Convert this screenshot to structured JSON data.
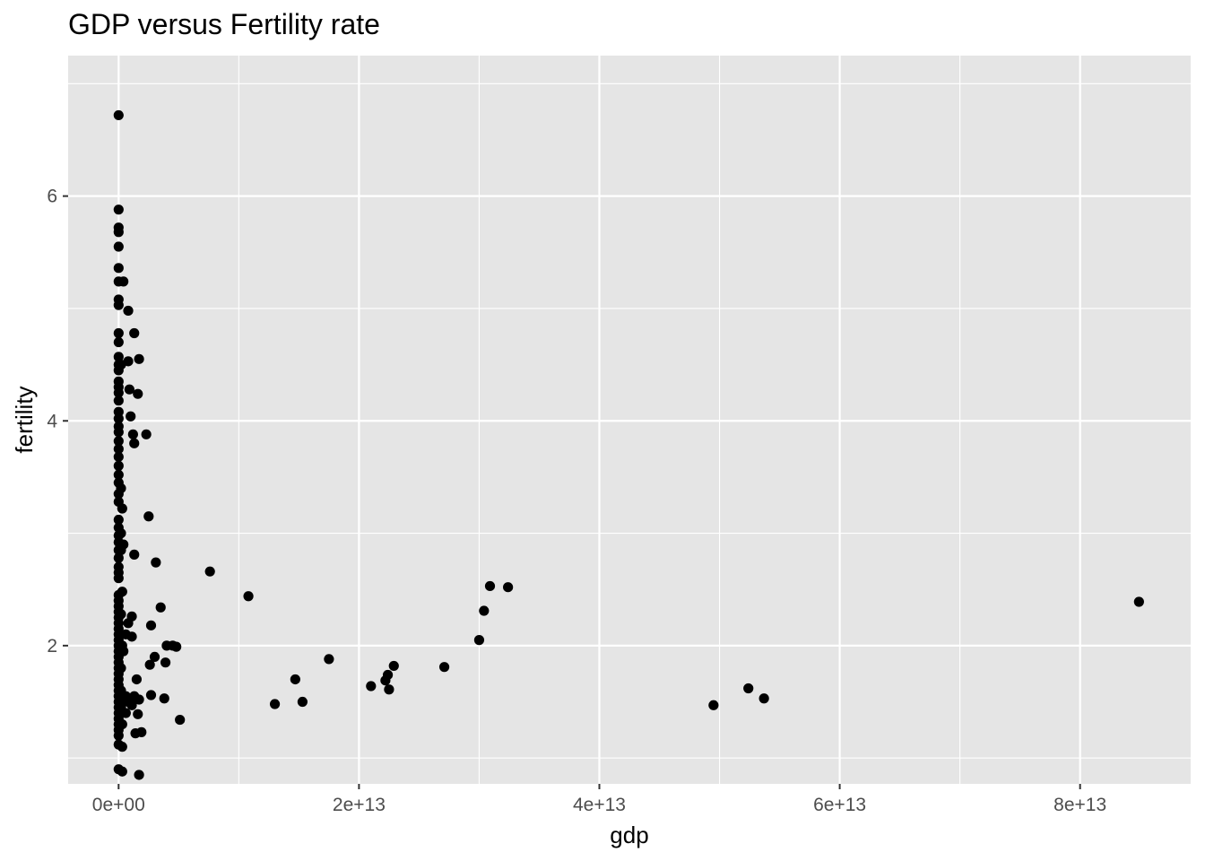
{
  "chart_data": {
    "type": "scatter",
    "title": "GDP versus Fertility rate",
    "xlabel": "gdp",
    "ylabel": "fertility",
    "xlim": [
      -4200000000000.0,
      89200000000000.0
    ],
    "ylim": [
      0.77,
      7.25
    ],
    "x_ticks": [
      {
        "value": 0,
        "label": "0e+00"
      },
      {
        "value": 20000000000000.0,
        "label": "2e+13"
      },
      {
        "value": 40000000000000.0,
        "label": "4e+13"
      },
      {
        "value": 60000000000000.0,
        "label": "6e+13"
      },
      {
        "value": 80000000000000.0,
        "label": "8e+13"
      }
    ],
    "x_minor": [
      10000000000000.0,
      30000000000000.0,
      50000000000000.0,
      70000000000000.0
    ],
    "y_ticks": [
      {
        "value": 2,
        "label": "2"
      },
      {
        "value": 4,
        "label": "4"
      },
      {
        "value": 6,
        "label": "6"
      }
    ],
    "y_minor": [
      1,
      3,
      5,
      7
    ],
    "grid": true,
    "panel_background": "#E5E5E5",
    "grid_color": "#FFFFFF",
    "point_color": "#000000",
    "points": [
      {
        "x": 0,
        "y": 6.72
      },
      {
        "x": 0,
        "y": 5.88
      },
      {
        "x": 0,
        "y": 5.72
      },
      {
        "x": 0,
        "y": 5.68
      },
      {
        "x": 0,
        "y": 5.55
      },
      {
        "x": 0,
        "y": 5.36
      },
      {
        "x": 0,
        "y": 5.24
      },
      {
        "x": 0,
        "y": 5.08
      },
      {
        "x": 0,
        "y": 5.03
      },
      {
        "x": 0,
        "y": 4.78
      },
      {
        "x": 0,
        "y": 4.7
      },
      {
        "x": 0,
        "y": 4.57
      },
      {
        "x": 0,
        "y": 4.5
      },
      {
        "x": 0,
        "y": 4.45
      },
      {
        "x": 0,
        "y": 4.35
      },
      {
        "x": 0,
        "y": 4.3
      },
      {
        "x": 0,
        "y": 4.25
      },
      {
        "x": 0,
        "y": 4.18
      },
      {
        "x": 0,
        "y": 4.08
      },
      {
        "x": 0,
        "y": 4.02
      },
      {
        "x": 0,
        "y": 3.95
      },
      {
        "x": 0,
        "y": 3.9
      },
      {
        "x": 0,
        "y": 3.82
      },
      {
        "x": 0,
        "y": 3.75
      },
      {
        "x": 0,
        "y": 3.68
      },
      {
        "x": 0,
        "y": 3.6
      },
      {
        "x": 0,
        "y": 3.52
      },
      {
        "x": 0,
        "y": 3.45
      },
      {
        "x": 0,
        "y": 3.35
      },
      {
        "x": 0,
        "y": 3.28
      },
      {
        "x": 0,
        "y": 3.12
      },
      {
        "x": 0,
        "y": 3.05
      },
      {
        "x": 0,
        "y": 2.98
      },
      {
        "x": 0,
        "y": 2.92
      },
      {
        "x": 0,
        "y": 2.85
      },
      {
        "x": 0,
        "y": 2.78
      },
      {
        "x": 0,
        "y": 2.7
      },
      {
        "x": 0,
        "y": 2.65
      },
      {
        "x": 0,
        "y": 2.6
      },
      {
        "x": 0,
        "y": 2.45
      },
      {
        "x": 0,
        "y": 2.4
      },
      {
        "x": 0,
        "y": 2.35
      },
      {
        "x": 0,
        "y": 2.3
      },
      {
        "x": 0,
        "y": 2.25
      },
      {
        "x": 0,
        "y": 2.2
      },
      {
        "x": 0,
        "y": 2.15
      },
      {
        "x": 0,
        "y": 2.1
      },
      {
        "x": 0,
        "y": 2.05
      },
      {
        "x": 0,
        "y": 2.0
      },
      {
        "x": 0,
        "y": 1.95
      },
      {
        "x": 0,
        "y": 1.9
      },
      {
        "x": 0,
        "y": 1.85
      },
      {
        "x": 0,
        "y": 1.8
      },
      {
        "x": 0,
        "y": 1.75
      },
      {
        "x": 0,
        "y": 1.7
      },
      {
        "x": 0,
        "y": 1.65
      },
      {
        "x": 0,
        "y": 1.6
      },
      {
        "x": 0,
        "y": 1.55
      },
      {
        "x": 0,
        "y": 1.5
      },
      {
        "x": 0,
        "y": 1.45
      },
      {
        "x": 0,
        "y": 1.4
      },
      {
        "x": 0,
        "y": 1.35
      },
      {
        "x": 0,
        "y": 1.3
      },
      {
        "x": 0,
        "y": 1.25
      },
      {
        "x": 0,
        "y": 1.2
      },
      {
        "x": 0,
        "y": 1.12
      },
      {
        "x": 0,
        "y": 0.9
      },
      {
        "x": 200000000000.0,
        "y": 4.5
      },
      {
        "x": 200000000000.0,
        "y": 3.4
      },
      {
        "x": 200000000000.0,
        "y": 3.0
      },
      {
        "x": 200000000000.0,
        "y": 2.85
      },
      {
        "x": 200000000000.0,
        "y": 2.28
      },
      {
        "x": 200000000000.0,
        "y": 1.8
      },
      {
        "x": 200000000000.0,
        "y": 1.6
      },
      {
        "x": 200000000000.0,
        "y": 1.45
      },
      {
        "x": 300000000000.0,
        "y": 3.22
      },
      {
        "x": 300000000000.0,
        "y": 2.48
      },
      {
        "x": 300000000000.0,
        "y": 2.0
      },
      {
        "x": 300000000000.0,
        "y": 1.3
      },
      {
        "x": 300000000000.0,
        "y": 1.1
      },
      {
        "x": 300000000000.0,
        "y": 0.88
      },
      {
        "x": 400000000000.0,
        "y": 5.24
      },
      {
        "x": 400000000000.0,
        "y": 2.9
      },
      {
        "x": 400000000000.0,
        "y": 1.95
      },
      {
        "x": 400000000000.0,
        "y": 1.5
      },
      {
        "x": 600000000000.0,
        "y": 2.1
      },
      {
        "x": 600000000000.0,
        "y": 1.55
      },
      {
        "x": 600000000000.0,
        "y": 1.4
      },
      {
        "x": 800000000000.0,
        "y": 4.98
      },
      {
        "x": 800000000000.0,
        "y": 4.53
      },
      {
        "x": 800000000000.0,
        "y": 2.2
      },
      {
        "x": 800000000000.0,
        "y": 1.5
      },
      {
        "x": 900000000000.0,
        "y": 4.28
      },
      {
        "x": 1000000000000.0,
        "y": 4.04
      },
      {
        "x": 1100000000000.0,
        "y": 2.26
      },
      {
        "x": 1100000000000.0,
        "y": 2.08
      },
      {
        "x": 1100000000000.0,
        "y": 1.47
      },
      {
        "x": 1200000000000.0,
        "y": 3.88
      },
      {
        "x": 1300000000000.0,
        "y": 4.78
      },
      {
        "x": 1300000000000.0,
        "y": 3.8
      },
      {
        "x": 1300000000000.0,
        "y": 2.81
      },
      {
        "x": 1300000000000.0,
        "y": 1.55
      },
      {
        "x": 1400000000000.0,
        "y": 1.22
      },
      {
        "x": 1500000000000.0,
        "y": 1.7
      },
      {
        "x": 1600000000000.0,
        "y": 4.24
      },
      {
        "x": 1600000000000.0,
        "y": 1.39
      },
      {
        "x": 1700000000000.0,
        "y": 4.55
      },
      {
        "x": 1700000000000.0,
        "y": 0.85
      },
      {
        "x": 1700000000000.0,
        "y": 1.52
      },
      {
        "x": 1900000000000.0,
        "y": 1.23
      },
      {
        "x": 2300000000000.0,
        "y": 3.88
      },
      {
        "x": 2500000000000.0,
        "y": 3.15
      },
      {
        "x": 2600000000000.0,
        "y": 1.83
      },
      {
        "x": 2700000000000.0,
        "y": 2.18
      },
      {
        "x": 2700000000000.0,
        "y": 1.56
      },
      {
        "x": 3000000000000.0,
        "y": 1.9
      },
      {
        "x": 3100000000000.0,
        "y": 2.74
      },
      {
        "x": 3500000000000.0,
        "y": 2.34
      },
      {
        "x": 3800000000000.0,
        "y": 1.53
      },
      {
        "x": 3900000000000.0,
        "y": 1.85
      },
      {
        "x": 4000000000000.0,
        "y": 2.0
      },
      {
        "x": 4500000000000.0,
        "y": 2.0
      },
      {
        "x": 4800000000000.0,
        "y": 1.99
      },
      {
        "x": 5100000000000.0,
        "y": 1.34
      },
      {
        "x": 7600000000000.0,
        "y": 2.66
      },
      {
        "x": 10800000000000.0,
        "y": 2.44
      },
      {
        "x": 13000000000000.0,
        "y": 1.48
      },
      {
        "x": 14700000000000.0,
        "y": 1.7
      },
      {
        "x": 15300000000000.0,
        "y": 1.5
      },
      {
        "x": 17500000000000.0,
        "y": 1.88
      },
      {
        "x": 21000000000000.0,
        "y": 1.64
      },
      {
        "x": 22200000000000.0,
        "y": 1.69
      },
      {
        "x": 22400000000000.0,
        "y": 1.74
      },
      {
        "x": 22500000000000.0,
        "y": 1.61
      },
      {
        "x": 22900000000000.0,
        "y": 1.82
      },
      {
        "x": 27100000000000.0,
        "y": 1.81
      },
      {
        "x": 30000000000000.0,
        "y": 2.05
      },
      {
        "x": 30400000000000.0,
        "y": 2.31
      },
      {
        "x": 30900000000000.0,
        "y": 2.53
      },
      {
        "x": 32400000000000.0,
        "y": 2.52
      },
      {
        "x": 49500000000000.0,
        "y": 1.47
      },
      {
        "x": 52400000000000.0,
        "y": 1.62
      },
      {
        "x": 53700000000000.0,
        "y": 1.53
      },
      {
        "x": 84900000000000.0,
        "y": 2.39
      }
    ]
  }
}
